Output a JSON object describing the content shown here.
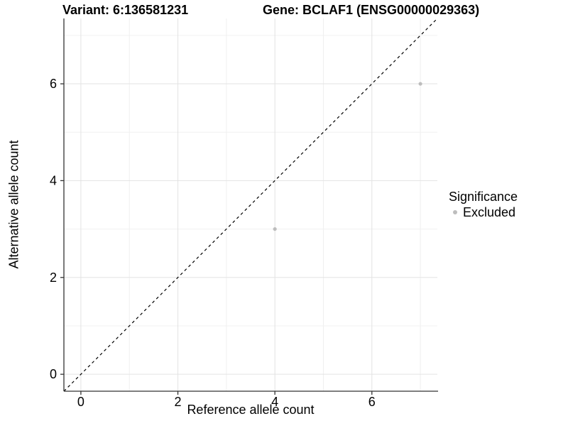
{
  "figure": {
    "background": "#ffffff"
  },
  "chart_data": {
    "type": "scatter",
    "title": "Variant: 6:136581231    Gene: BCLAF1 (ENSG00000029363)",
    "title_parts": {
      "variant": "Variant: 6:136581231",
      "gene": "Gene: BCLAF1 (ENSG00000029363)"
    },
    "xlabel": "Reference allele count",
    "ylabel": "Alternative allele count",
    "xlim": [
      -0.35,
      7.35
    ],
    "ylim": [
      -0.35,
      7.35
    ],
    "x_major_ticks": [
      0,
      2,
      4,
      6
    ],
    "y_major_ticks": [
      0,
      2,
      4,
      6
    ],
    "x_minor_ticks": [
      1,
      3,
      5,
      7
    ],
    "y_minor_ticks": [
      1,
      3,
      5,
      7
    ],
    "grid": true,
    "series": [
      {
        "name": "Excluded",
        "points": [
          {
            "x": 4,
            "y": 3
          },
          {
            "x": 7,
            "y": 6
          }
        ]
      }
    ],
    "reference_line": {
      "type": "identity",
      "style": "dashed",
      "from": [
        -0.35,
        -0.35
      ],
      "to": [
        7.35,
        7.35
      ]
    },
    "legend": {
      "title": "Significance",
      "position": "right",
      "items": [
        {
          "label": "Excluded",
          "marker": "circle"
        }
      ]
    },
    "colors": {
      "point": "#bdbdbd",
      "grid_major": "#e3e3e3",
      "grid_minor": "#f0f0f0",
      "axis": "#333333",
      "reference_line": "#000000",
      "text": "#000000",
      "background": "#ffffff"
    }
  }
}
